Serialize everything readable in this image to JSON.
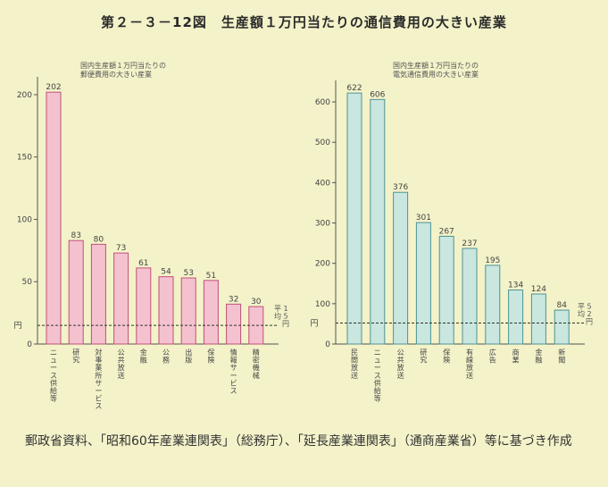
{
  "title": "第２－３－12図　生産額１万円当たりの通信費用の大きい産業",
  "source_note": "郵政省資料、「昭和60年産業連関表」（総務庁）、「延長産業連関表」（通商産業省）等に基づき作成",
  "colors": {
    "left_bar_fill": "#f4c2cf",
    "left_bar_stroke": "#c0507a",
    "right_bar_fill": "#c9e6df",
    "right_bar_stroke": "#4e9494",
    "background": "#f3f2c9"
  },
  "chart_data": [
    {
      "type": "bar",
      "title": "国内生産額１万円当たりの郵便費用の大きい産業",
      "unit": "円",
      "categories": [
        "ニュース供給等",
        "研究",
        "対事業所サービス",
        "公共放送",
        "金融",
        "公務",
        "出版",
        "保険",
        "情報サービス",
        "精密機械"
      ],
      "values": [
        202,
        83,
        80,
        73,
        61,
        54,
        53,
        51,
        32,
        30
      ],
      "ylim": [
        0,
        210
      ],
      "yticks": [
        0,
        50,
        100,
        150,
        200
      ],
      "average": {
        "value": 15,
        "label_1": "平均",
        "label_2": "15円"
      }
    },
    {
      "type": "bar",
      "title": "国内生産額１万円当たりの電気通信費用の大きい産業",
      "unit": "円",
      "categories": [
        "民間放送",
        "ニュース供給等",
        "公共放送",
        "研究",
        "保険",
        "有線放送",
        "広告",
        "商業",
        "金融",
        "新聞"
      ],
      "values": [
        622,
        606,
        376,
        301,
        267,
        237,
        195,
        134,
        124,
        84
      ],
      "ylim": [
        0,
        640
      ],
      "yticks": [
        0,
        100,
        200,
        300,
        400,
        500,
        600
      ],
      "average": {
        "value": 52,
        "label_1": "平均",
        "label_2": "52円"
      }
    }
  ]
}
